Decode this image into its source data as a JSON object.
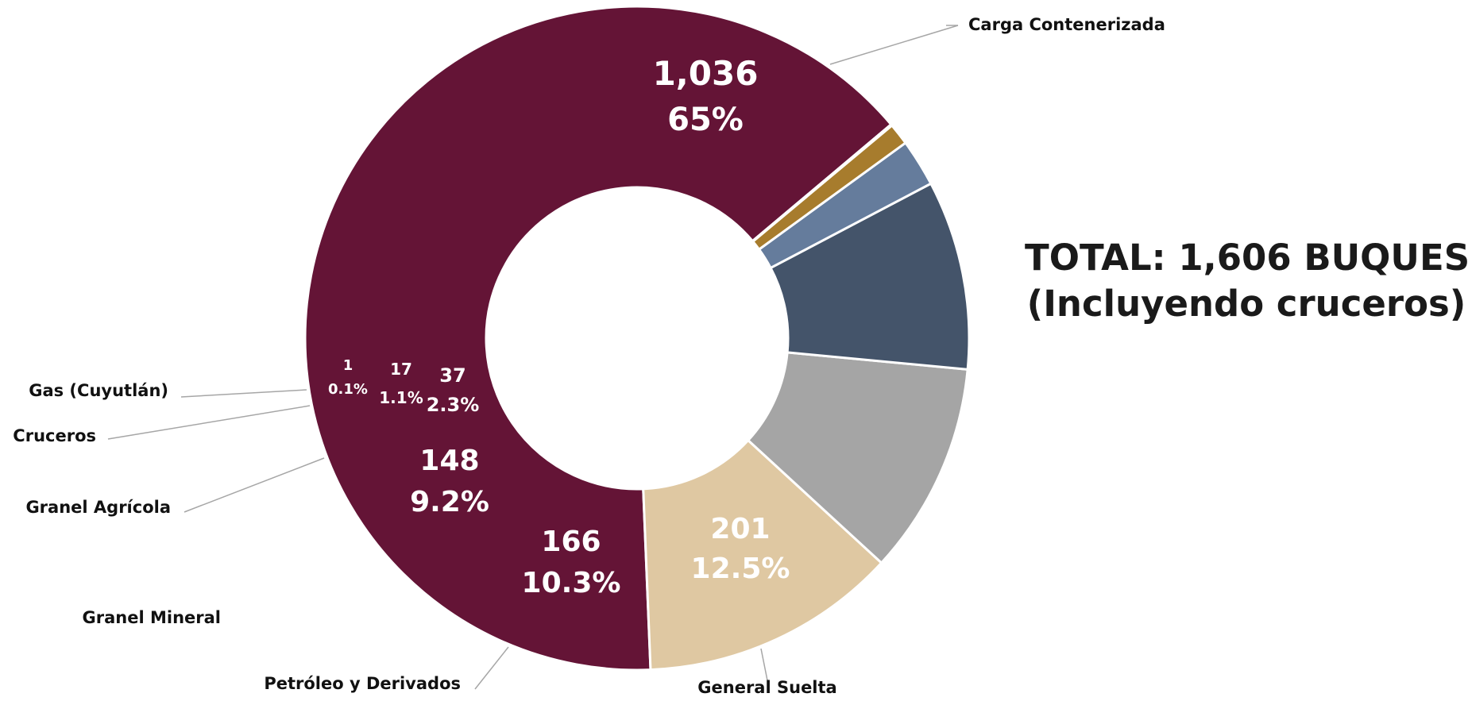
{
  "chart_data": {
    "type": "pie",
    "subtype": "donut",
    "categories": [
      "Carga Contenerizada",
      "General Suelta",
      "Petróleo y Derivados",
      "Granel Mineral",
      "Granel Agrícola",
      "Cruceros",
      "Gas (Cuyutlán)"
    ],
    "values": [
      1036,
      201,
      166,
      148,
      37,
      17,
      1
    ],
    "value_labels": [
      "1,036",
      "201",
      "166",
      "148",
      "37",
      "17",
      "1"
    ],
    "percent_labels": [
      "65%",
      "12.5%",
      "10.3%",
      "9.2%",
      "2.3%",
      "1.1%",
      "0.1%"
    ],
    "colors": [
      "#641436",
      "#dfc8a2",
      "#a5a5a5",
      "#44546a",
      "#657c9c",
      "#a77c2d",
      "#a77c2d"
    ],
    "legend": "none",
    "annotation": {
      "line1": "TOTAL: 1,606 BUQUES",
      "line2": "(Incluyendo cruceros)"
    }
  }
}
